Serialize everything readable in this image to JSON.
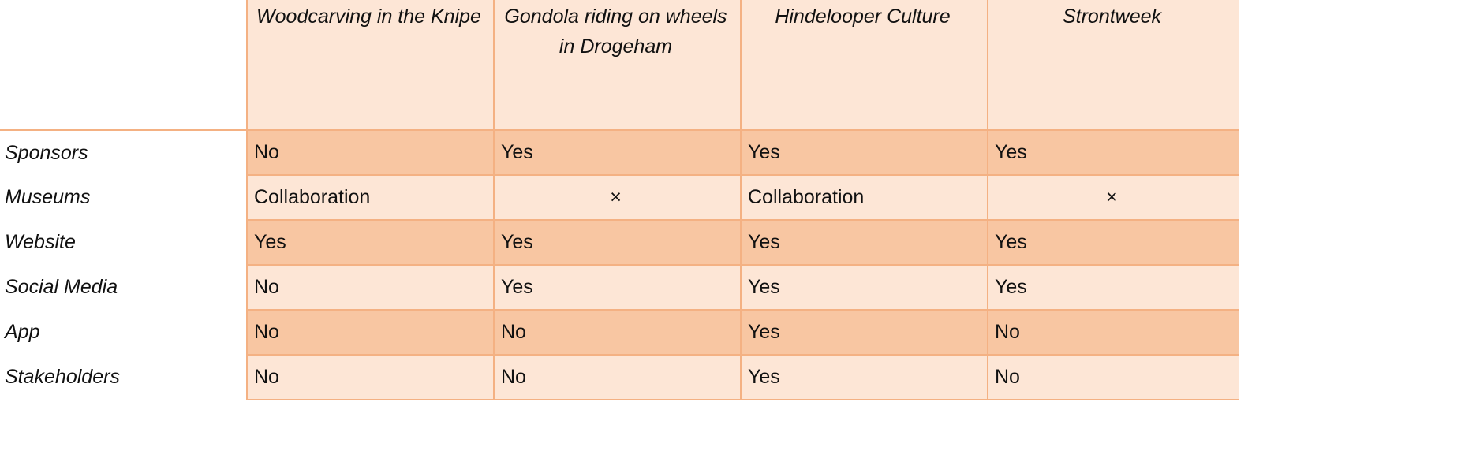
{
  "table": {
    "columns": [
      "Woodcarving in the Knipe",
      "Gondola riding on wheels in Drogeham",
      "Hindelooper Culture",
      "Strontweek"
    ],
    "rows": [
      {
        "label": "Sponsors",
        "cells": [
          "No",
          "Yes",
          "Yes",
          "Yes"
        ]
      },
      {
        "label": "Museums",
        "cells": [
          "Collaboration",
          "×",
          "Collaboration",
          "×"
        ]
      },
      {
        "label": "Website",
        "cells": [
          "Yes",
          "Yes",
          "Yes",
          "Yes"
        ]
      },
      {
        "label": "Social Media",
        "cells": [
          "No",
          "Yes",
          "Yes",
          "Yes"
        ]
      },
      {
        "label": "App",
        "cells": [
          "No",
          "No",
          "Yes",
          "No"
        ]
      },
      {
        "label": "Stakeholders",
        "cells": [
          "No",
          "No",
          "Yes",
          "No"
        ]
      }
    ]
  }
}
